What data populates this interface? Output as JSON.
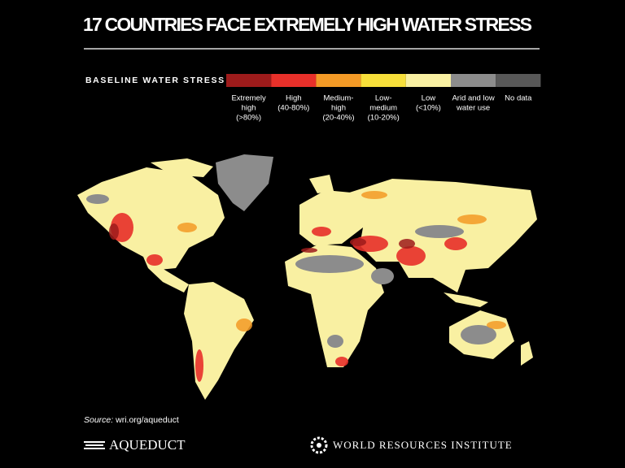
{
  "header": {
    "title": "17 COUNTRIES FACE EXTREMELY HIGH WATER STRESS"
  },
  "legend": {
    "title": "BASELINE WATER STRESS",
    "items": [
      {
        "lines": [
          "Extremely",
          "high",
          "(>80%)"
        ],
        "color": "#9e1b1b"
      },
      {
        "lines": [
          "High",
          "(40-80%)"
        ],
        "color": "#e8302a"
      },
      {
        "lines": [
          "Medium-",
          "high",
          "(20-40%)"
        ],
        "color": "#f39a26"
      },
      {
        "lines": [
          "Low-",
          "medium",
          "(10-20%)"
        ],
        "color": "#f7df3a"
      },
      {
        "lines": [
          "Low",
          "(<10%)"
        ],
        "color": "#f9f0a2"
      },
      {
        "lines": [
          "Arid and low",
          "water use"
        ],
        "color": "#8c8c8c"
      },
      {
        "lines": [
          "No data"
        ],
        "color": "#585858"
      }
    ]
  },
  "footer": {
    "source_label": "Source:",
    "source_url": "wri.org/aqueduct",
    "logo_left": "AQUEDUCT",
    "logo_right": "WORLD RESOURCES INSTITUTE"
  }
}
